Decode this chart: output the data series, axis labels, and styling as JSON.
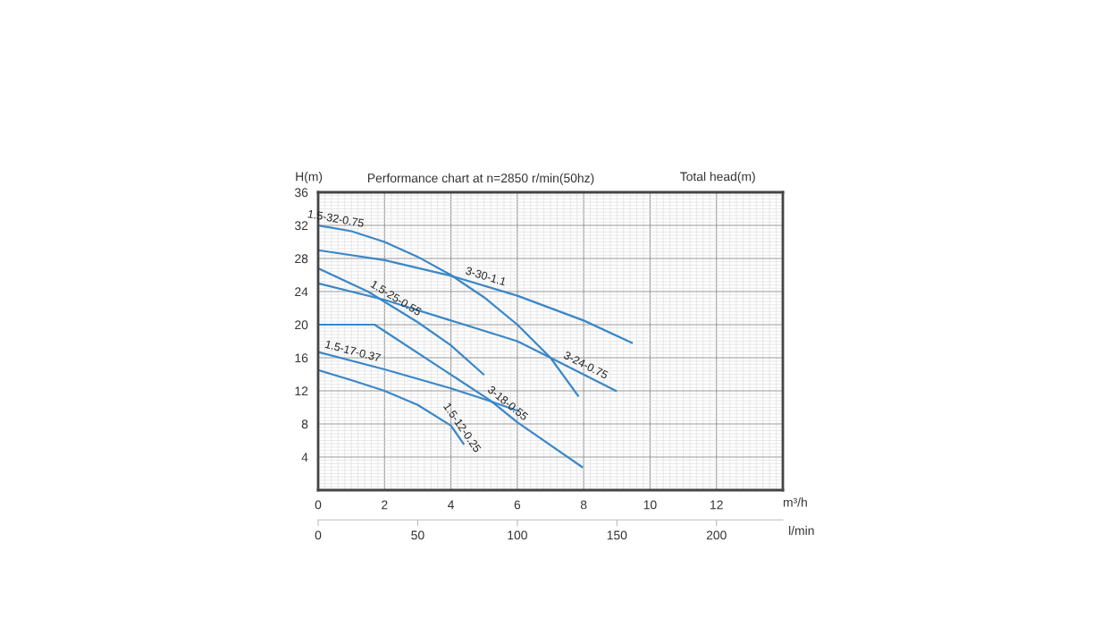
{
  "chart_data": {
    "type": "line",
    "title": "Performance chart at n=2850 r/min(50hz)",
    "ylabel": "H(m)",
    "xlabel": "m³/h",
    "x2label": "l/min",
    "annotations": [
      "Total head(m)"
    ],
    "xlim": [
      0,
      14
    ],
    "xticks": [
      0,
      2,
      4,
      6,
      8,
      10,
      12
    ],
    "ylim": [
      0,
      36
    ],
    "yticks": [
      4,
      8,
      12,
      16,
      20,
      24,
      28,
      32,
      36
    ],
    "x2lim": [
      0,
      233.33
    ],
    "x2ticks": [
      0,
      50,
      100,
      150,
      200
    ],
    "grid": true,
    "marker": "none",
    "line_style": "solid",
    "legend": false,
    "series": [
      {
        "name": "1.5-32-0.75",
        "color": "#3a87c8",
        "x": [
          0,
          1,
          2,
          3,
          4,
          5,
          6,
          7,
          7.83
        ],
        "values": [
          32,
          31.3,
          30,
          28.2,
          26,
          23.3,
          20,
          16,
          11.4
        ]
      },
      {
        "name": "3-30-1.1",
        "color": "#3a87c8",
        "x": [
          0,
          2,
          4,
          6,
          8,
          9.45
        ],
        "values": [
          29,
          27.8,
          25.9,
          23.5,
          20.5,
          17.8
        ]
      },
      {
        "name": "3-24-0.75",
        "color": "#3a87c8",
        "x": [
          0,
          2,
          4,
          6,
          7,
          8.97
        ],
        "values": [
          25,
          23,
          20.5,
          18,
          16,
          12
        ]
      },
      {
        "name": "1.5-25-0.55",
        "color": "#3a87c8",
        "x": [
          0,
          1.5,
          3,
          4,
          4.98
        ],
        "values": [
          26.8,
          24,
          20.3,
          17.5,
          14
        ]
      },
      {
        "name": "3-18-0.55",
        "color": "#3a87c8",
        "x": [
          0,
          1.7,
          5.2,
          6,
          7.95
        ],
        "values": [
          20,
          20,
          10.8,
          8.2,
          2.8
        ]
      },
      {
        "name": "1.5-17-0.37",
        "color": "#3a87c8",
        "x": [
          0,
          2,
          4,
          5,
          6
        ],
        "values": [
          16.7,
          14.6,
          12.3,
          11,
          9.6
        ]
      },
      {
        "name": "1.5-12-0.25",
        "color": "#3a87c8",
        "x": [
          0,
          1,
          2,
          3,
          4,
          4.38
        ],
        "values": [
          14.5,
          13.3,
          12,
          10.3,
          7.8,
          5.6
        ]
      }
    ]
  }
}
